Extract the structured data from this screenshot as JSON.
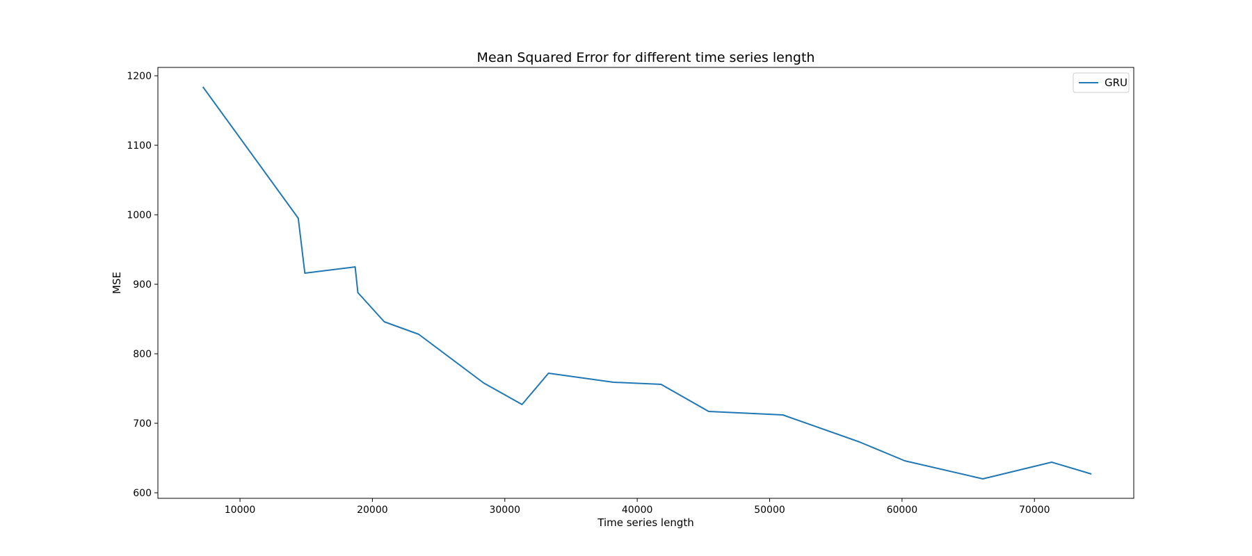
{
  "chart_data": {
    "type": "line",
    "title": "Mean Squared Error for different time series length",
    "xlabel": "Time series length",
    "ylabel": "MSE",
    "xlim": [
      3800,
      77500
    ],
    "ylim": [
      592,
      1212
    ],
    "xticks": [
      10000,
      20000,
      30000,
      40000,
      50000,
      60000,
      70000
    ],
    "yticks": [
      600,
      700,
      800,
      900,
      1000,
      1100,
      1200
    ],
    "grid": false,
    "legend_position": "top-right",
    "colors": {
      "GRU": "#1f77b4"
    },
    "series": [
      {
        "name": "GRU",
        "x": [
          7200,
          14400,
          14900,
          18700,
          18900,
          20900,
          23500,
          28400,
          31300,
          33300,
          38200,
          41800,
          45400,
          51000,
          56800,
          60200,
          66100,
          71300,
          74300
        ],
        "y": [
          1184,
          995,
          916,
          925,
          888,
          846,
          828,
          758,
          727,
          772,
          759,
          756,
          717,
          712,
          673,
          646,
          620,
          644,
          627
        ]
      }
    ]
  }
}
